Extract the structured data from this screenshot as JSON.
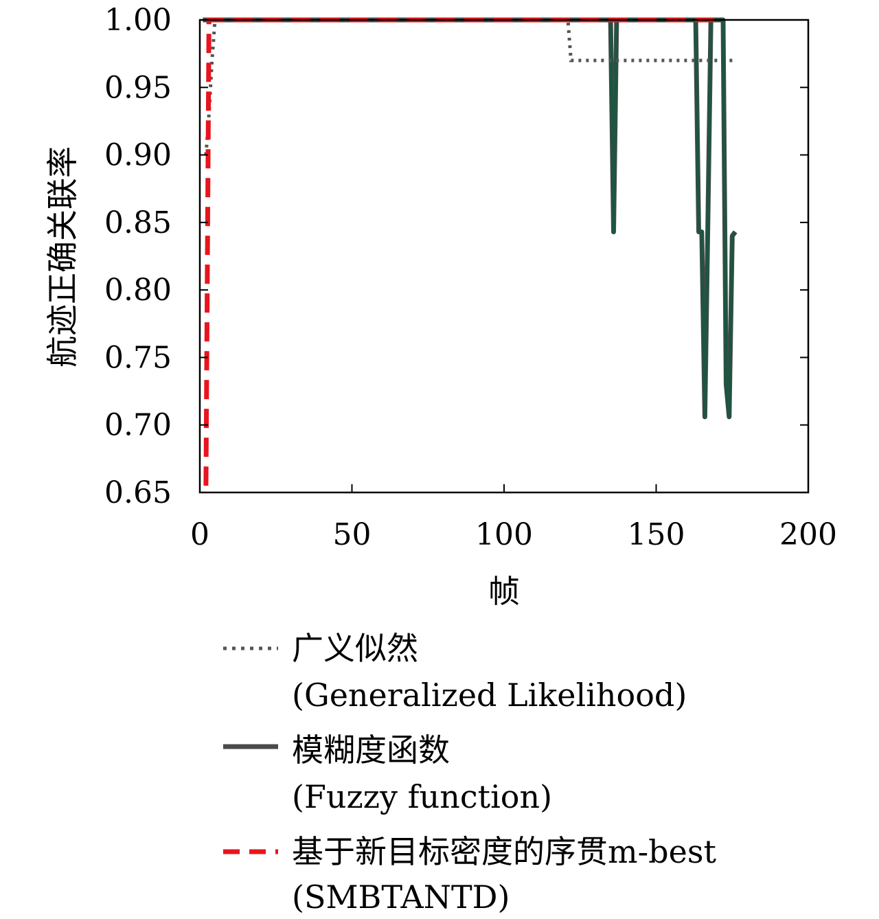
{
  "chart_data": {
    "type": "line",
    "xlabel": "帧",
    "ylabel": "航迹正确关联率",
    "xlim": [
      0,
      200
    ],
    "ylim": [
      0.65,
      1.0
    ],
    "xticks": [
      "0",
      "50",
      "100",
      "150",
      "200"
    ],
    "yticks": [
      "0.65",
      "0.70",
      "0.75",
      "0.80",
      "0.85",
      "0.90",
      "0.95",
      "1.00"
    ],
    "grid": false,
    "legend_position": "below",
    "series": [
      {
        "name": "广义似然",
        "name_en": "(Generalized Likelihood)",
        "style": "dotted",
        "color": "#555555",
        "points": [
          [
            2,
            0.9
          ],
          [
            3,
            0.93
          ],
          [
            4,
            0.97
          ],
          [
            5,
            1.0
          ],
          [
            121,
            1.0
          ],
          [
            122,
            0.97
          ],
          [
            176,
            0.97
          ]
        ]
      },
      {
        "name": "模糊度函数",
        "name_en": "(Fuzzy function)",
        "style": "solid",
        "color": "#4a4a4a",
        "overlap_color": "#1e5540",
        "points": [
          [
            1,
            1.0
          ],
          [
            135,
            1.0
          ],
          [
            136,
            0.843
          ],
          [
            137,
            1.0
          ],
          [
            163,
            1.0
          ],
          [
            164,
            0.843
          ],
          [
            165,
            0.843
          ],
          [
            166,
            0.706
          ],
          [
            167,
            0.85
          ],
          [
            168,
            1.0
          ],
          [
            172,
            1.0
          ],
          [
            173,
            0.73
          ],
          [
            174,
            0.706
          ],
          [
            175,
            0.84
          ],
          [
            176,
            0.843
          ]
        ]
      },
      {
        "name": "基于新目标密度的序贯m-best",
        "name_en": "(SMBTANTD)",
        "style": "dashed",
        "color": "#e8141e",
        "points": [
          [
            2,
            0.655
          ],
          [
            3,
            1.0
          ],
          [
            172,
            1.0
          ],
          [
            173,
            0.73
          ],
          [
            174,
            0.706
          ],
          [
            175,
            0.84
          ],
          [
            176,
            0.843
          ]
        ]
      }
    ]
  }
}
